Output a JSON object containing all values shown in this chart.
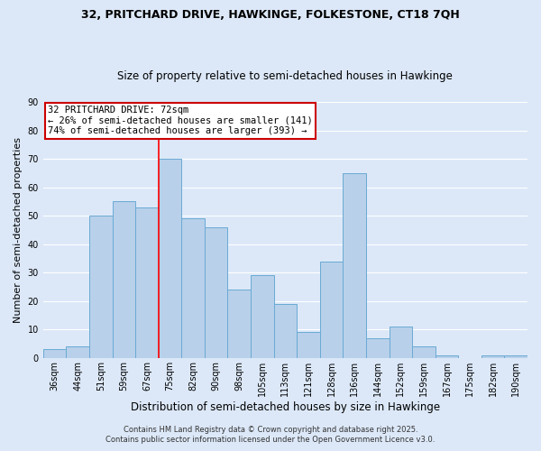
{
  "title1": "32, PRITCHARD DRIVE, HAWKINGE, FOLKESTONE, CT18 7QH",
  "title2": "Size of property relative to semi-detached houses in Hawkinge",
  "xlabel": "Distribution of semi-detached houses by size in Hawkinge",
  "ylabel": "Number of semi-detached properties",
  "footer1": "Contains HM Land Registry data © Crown copyright and database right 2025.",
  "footer2": "Contains public sector information licensed under the Open Government Licence v3.0.",
  "bar_labels": [
    "36sqm",
    "44sqm",
    "51sqm",
    "59sqm",
    "67sqm",
    "75sqm",
    "82sqm",
    "90sqm",
    "98sqm",
    "105sqm",
    "113sqm",
    "121sqm",
    "128sqm",
    "136sqm",
    "144sqm",
    "152sqm",
    "159sqm",
    "167sqm",
    "175sqm",
    "182sqm",
    "190sqm"
  ],
  "bar_values": [
    3,
    4,
    50,
    55,
    53,
    70,
    49,
    46,
    24,
    29,
    19,
    9,
    34,
    65,
    7,
    11,
    4,
    1,
    0,
    1,
    1
  ],
  "bar_color": "#b8d0ea",
  "bar_edge_color": "#6aaad4",
  "background_color": "#dce8f8",
  "grid_color": "#ffffff",
  "annotation_title": "32 PRITCHARD DRIVE: 72sqm",
  "annotation_line1": "← 26% of semi-detached houses are smaller (141)",
  "annotation_line2": "74% of semi-detached houses are larger (393) →",
  "annotation_box_color": "#ffffff",
  "annotation_box_edge": "#cc0000",
  "vline_bin_index": 4.5,
  "ylim": [
    0,
    90
  ],
  "yticks": [
    0,
    10,
    20,
    30,
    40,
    50,
    60,
    70,
    80,
    90
  ],
  "title1_fontsize": 9,
  "title2_fontsize": 8.5,
  "ylabel_fontsize": 8,
  "xlabel_fontsize": 8.5,
  "tick_fontsize": 7,
  "footer_fontsize": 6,
  "annot_fontsize": 7.5
}
